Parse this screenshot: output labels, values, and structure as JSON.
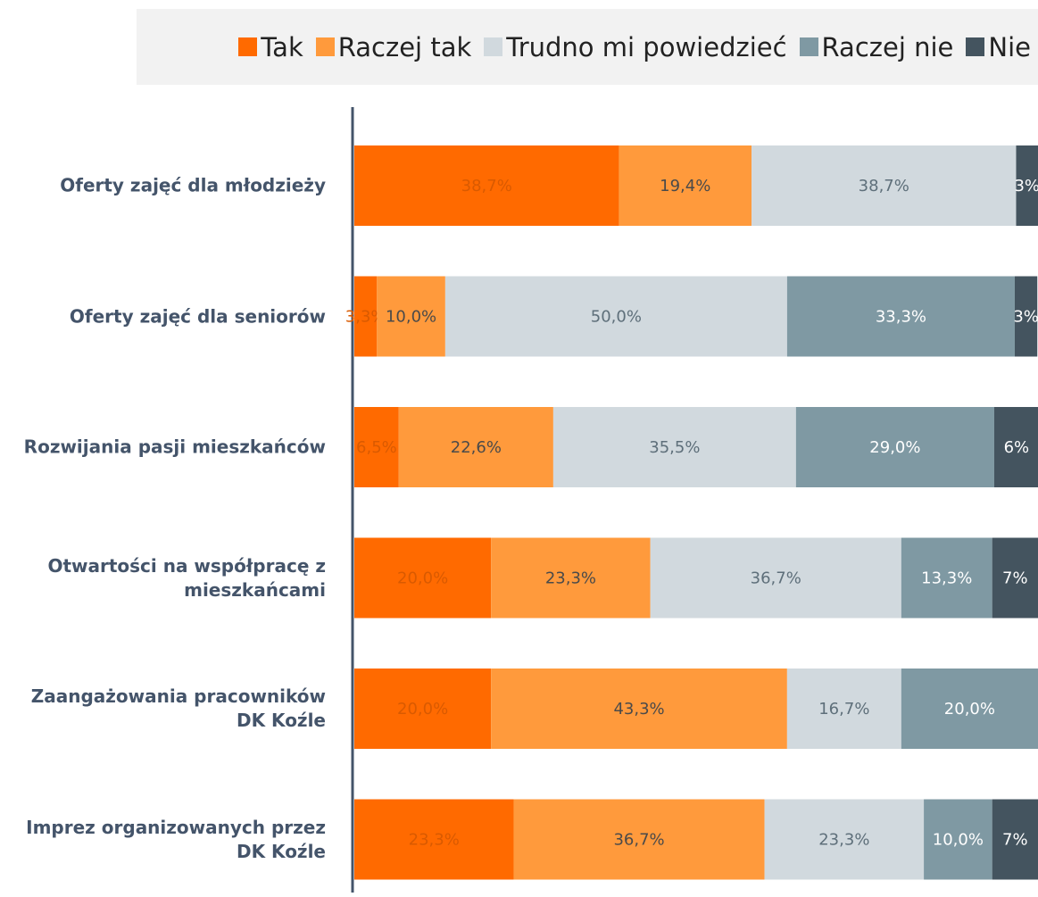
{
  "chart_data": {
    "type": "stacked-bar-horizontal",
    "categories": [
      "Oferty zajęć dla młodzieży",
      "Oferty zajęć dla seniorów",
      "Rozwijania pasji mieszkańców",
      "Otwartości na współpracę z mieszkańcami",
      "Zaangażowania pracowników DK Koźle",
      "Imprez organizowanych przez DK Koźle"
    ],
    "xlim": [
      0,
      100
    ],
    "legend": "top",
    "series": [
      {
        "name": "Tak",
        "color": "#ff6a00",
        "label_color": "#d95a00",
        "values": [
          38.7,
          3.3,
          6.5,
          20.0,
          20.0,
          23.3
        ],
        "value_labels": [
          "38,7%",
          "3,3%",
          "6,5%",
          "20,0%",
          "20,0%",
          "23,3%"
        ]
      },
      {
        "name": "Raczej tak",
        "color": "#ff9a3c",
        "label_color": "#4a4a4a",
        "values": [
          19.4,
          10.0,
          22.6,
          23.3,
          43.3,
          36.7
        ],
        "value_labels": [
          "19,4%",
          "10,0%",
          "22,6%",
          "23,3%",
          "43,3%",
          "36,7%"
        ]
      },
      {
        "name": "Trudno mi powiedzieć",
        "color": "#d1d9de",
        "label_color": "#5e6f7a",
        "values": [
          38.7,
          50.0,
          35.5,
          36.7,
          16.7,
          23.3
        ],
        "value_labels": [
          "38,7%",
          "50,0%",
          "35,5%",
          "36,7%",
          "16,7%",
          "23,3%"
        ]
      },
      {
        "name": "Raczej nie",
        "color": "#7f99a3",
        "label_color": "#ffffff",
        "values": [
          0,
          33.3,
          29.0,
          13.3,
          20.0,
          10.0
        ],
        "value_labels": [
          null,
          "33,3%",
          "29,0%",
          "13,3%",
          "20,0%",
          "10,0%"
        ]
      },
      {
        "name": "Nie",
        "color": "#44545f",
        "label_color": "#ffffff",
        "values": [
          3.2,
          3.3,
          6.5,
          6.7,
          0,
          6.7
        ],
        "value_labels": [
          "3%",
          "3%",
          "6%",
          "7%",
          null,
          "7%"
        ]
      }
    ]
  }
}
